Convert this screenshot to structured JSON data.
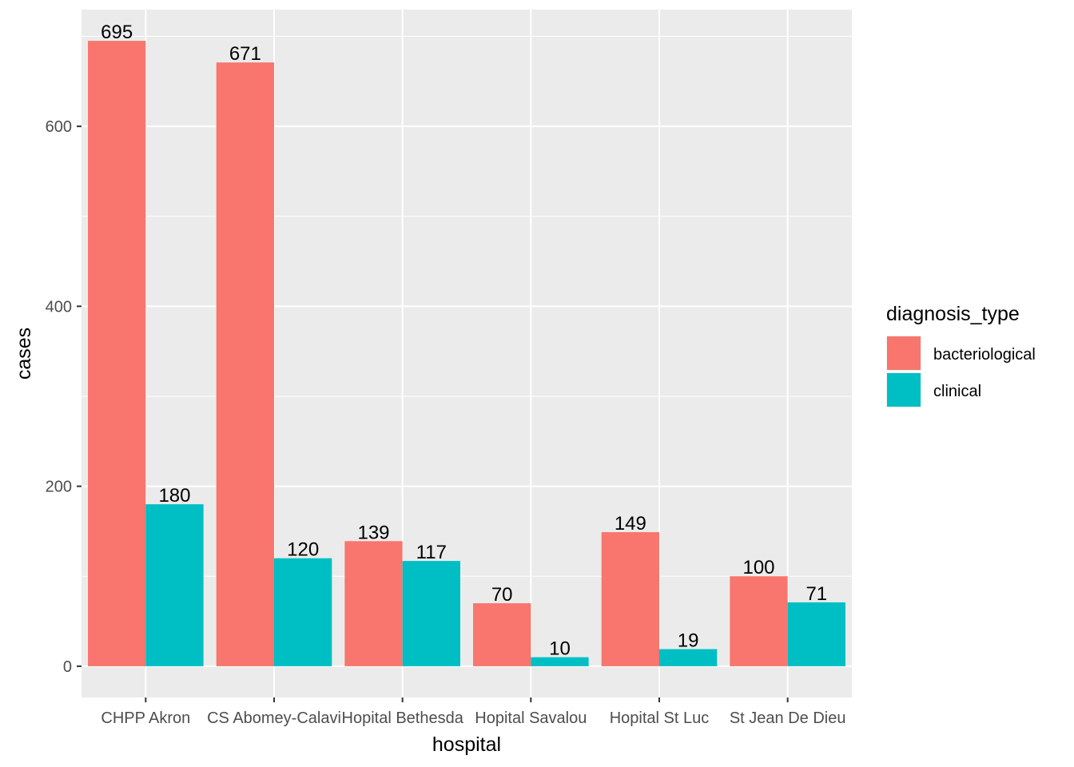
{
  "chart_data": {
    "type": "bar",
    "categories": [
      "CHPP Akron",
      "CS Abomey-Calavi",
      "Hopital Bethesda",
      "Hopital Savalou",
      "Hopital St Luc",
      "St Jean De Dieu"
    ],
    "series": [
      {
        "name": "bacteriological",
        "color": "#F8766D",
        "values": [
          695,
          671,
          139,
          70,
          149,
          100
        ]
      },
      {
        "name": "clinical",
        "color": "#00BFC4",
        "values": [
          180,
          120,
          117,
          10,
          19,
          71
        ]
      }
    ],
    "xlabel": "hospital",
    "ylabel": "cases",
    "y_ticks": [
      0,
      200,
      400,
      600
    ],
    "ylim": [
      -34.75,
      729.75
    ],
    "legend_title": "diagnosis_type",
    "legend_position": "right",
    "grid": true,
    "panel_background": "#EBEBEB",
    "grid_color": "#FFFFFF"
  }
}
